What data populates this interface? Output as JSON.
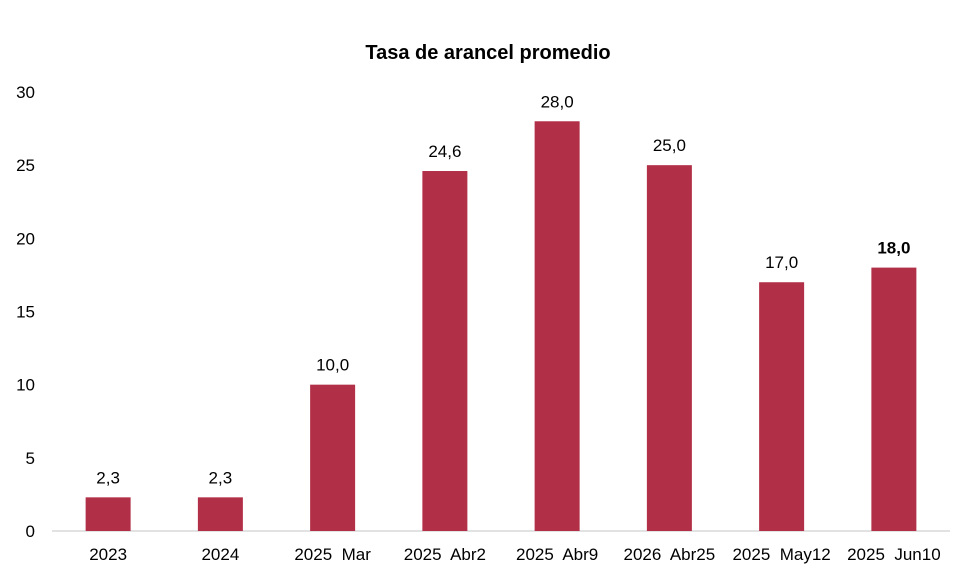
{
  "chart_data": {
    "type": "bar",
    "title": "Tasa de arancel promedio",
    "xlabel": "",
    "ylabel": "",
    "categories": [
      "2023",
      "2024",
      "2025  Mar",
      "2025  Abr2",
      "2025  Abr9",
      "2026  Abr25",
      "2025  May12",
      "2025  Jun10"
    ],
    "values": [
      2.3,
      2.3,
      10.0,
      24.6,
      28.0,
      25.0,
      17.0,
      18.0
    ],
    "data_labels": [
      "2,3",
      "2,3",
      "10,0",
      "24,6",
      "28,0",
      "25,0",
      "17,0",
      "18,0"
    ],
    "bold_labels": [
      false,
      false,
      false,
      false,
      false,
      false,
      false,
      true
    ],
    "ylim": [
      0,
      30
    ],
    "yticks": [
      0,
      5,
      10,
      15,
      20,
      25,
      30
    ],
    "ytick_labels": [
      "0",
      "5",
      "10",
      "15",
      "20",
      "25",
      "30"
    ],
    "grid": false,
    "legend": "none",
    "bar_color": "#b22f48",
    "axis_color": "#d9d9d9"
  }
}
